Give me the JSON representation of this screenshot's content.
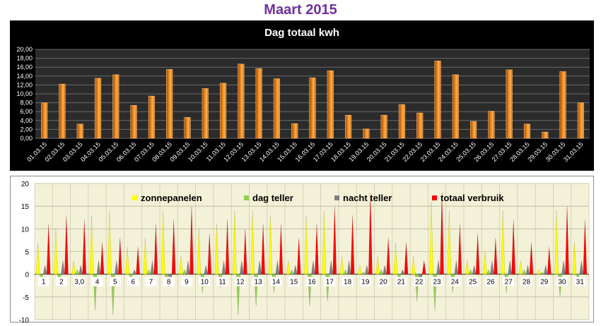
{
  "page": {
    "title": "Maart 2015"
  },
  "chart_data": [
    {
      "type": "bar",
      "title": "Dag totaal kwh",
      "xlabel": "",
      "ylabel": "",
      "ylim": [
        0,
        20
      ],
      "yticks": [
        "0,00",
        "2,00",
        "4,00",
        "6,00",
        "8,00",
        "10,00",
        "12,00",
        "14,00",
        "16,00",
        "18,00",
        "20,00"
      ],
      "categories": [
        "01.03.15",
        "02.03.15",
        "03.03.15",
        "04.03.15",
        "05.03.15",
        "06.03.15",
        "07.03.15",
        "08.03.15",
        "09.03.15",
        "10.03.15",
        "11.03.15",
        "12.03.15",
        "13.03.15",
        "14.03.15",
        "15.03.15",
        "16.03.15",
        "17.03.15",
        "18.03.15",
        "19.03.15",
        "20.03.15",
        "21.03.15",
        "22.03.15",
        "23.03.15",
        "24.03.15",
        "25.03.15",
        "26.03.15",
        "27.03.15",
        "28.03.15",
        "29.03.15",
        "30.03.15",
        "31.03.15"
      ],
      "values": [
        8.0,
        12.2,
        3.2,
        13.5,
        14.3,
        7.4,
        9.5,
        15.5,
        4.7,
        11.2,
        12.4,
        16.7,
        15.7,
        13.4,
        3.3,
        13.6,
        15.2,
        5.2,
        2.1,
        5.2,
        7.6,
        5.7,
        17.4,
        14.3,
        3.8,
        6.1,
        15.4,
        3.2,
        1.4,
        15.0,
        8.0
      ],
      "bar_color": "#f08c1e",
      "background": "#000000",
      "grid": true
    },
    {
      "type": "bar",
      "title": "",
      "xlabel": "",
      "ylabel": "",
      "ylim": [
        -10,
        20
      ],
      "yticks": [
        "-10",
        "-5",
        "0",
        "5",
        "10",
        "15",
        "20"
      ],
      "categories": [
        "1",
        "2",
        "3,0",
        "4",
        "5",
        "6",
        "7",
        "8",
        "9",
        "10",
        "11",
        "12",
        "13",
        "14",
        "15",
        "16",
        "17",
        "18",
        "19",
        "20",
        "21",
        "22",
        "23",
        "24",
        "25",
        "26",
        "27",
        "28",
        "29",
        "30",
        "31"
      ],
      "series": [
        {
          "name": "zonnepanelen",
          "color": "#ffff00",
          "values": [
            7.0,
            10.0,
            3.0,
            13.0,
            14.0,
            6.0,
            8.0,
            14.0,
            4.0,
            10.0,
            11.0,
            14.0,
            14.0,
            13.0,
            3.0,
            13.0,
            14.0,
            4.0,
            2.0,
            4.0,
            7.0,
            4.0,
            16.0,
            14.0,
            3.0,
            5.0,
            14.0,
            3.0,
            1.0,
            14.0,
            7.0
          ]
        },
        {
          "name": "dag teller",
          "color": "#92d050",
          "values": [
            -1.0,
            -2.0,
            1.0,
            -8.0,
            -9.0,
            -1.0,
            1.0,
            -2.0,
            1.0,
            -4.0,
            -3.0,
            -9.0,
            -7.0,
            -4.0,
            1.0,
            -7.0,
            -6.0,
            1.0,
            0.5,
            1.0,
            -1.0,
            -6.0,
            -8.0,
            -4.0,
            1.0,
            1.0,
            -4.0,
            1.0,
            0.5,
            -5.0,
            -1.0
          ]
        },
        {
          "name": "nacht teller",
          "color": "#808080",
          "values": [
            2.0,
            3.0,
            2.0,
            3.0,
            3.0,
            1.0,
            3.0,
            -2.0,
            3.0,
            2.0,
            3.0,
            3.0,
            3.0,
            3.0,
            2.0,
            3.0,
            3.0,
            3.0,
            2.0,
            2.0,
            1.0,
            -2.0,
            3.0,
            3.0,
            2.0,
            3.0,
            3.0,
            2.0,
            2.0,
            3.0,
            3.0
          ]
        },
        {
          "name": "totaal verbruik",
          "color": "#ff0000",
          "values": [
            11.0,
            13.0,
            12.0,
            7.0,
            8.0,
            6.0,
            11.0,
            12.0,
            15.0,
            9.0,
            12.0,
            10.0,
            11.0,
            11.0,
            8.0,
            11.0,
            15.0,
            13.0,
            18.0,
            8.0,
            7.0,
            3.0,
            18.0,
            11.0,
            9.0,
            8.0,
            12.0,
            7.0,
            6.0,
            15.0,
            12.0
          ]
        }
      ],
      "legend_position": "top",
      "background": "#f3f1d8",
      "grid": true
    }
  ]
}
